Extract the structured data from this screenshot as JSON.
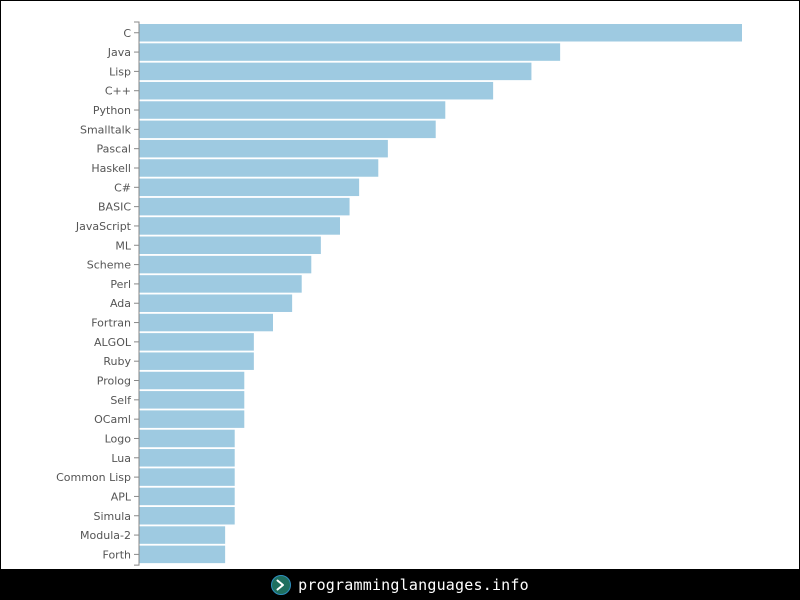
{
  "chart_data": {
    "type": "bar",
    "orientation": "horizontal",
    "categories": [
      "C",
      "Java",
      "Lisp",
      "C++",
      "Python",
      "Smalltalk",
      "Pascal",
      "Haskell",
      "C#",
      "BASIC",
      "JavaScript",
      "ML",
      "Scheme",
      "Perl",
      "Ada",
      "Fortran",
      "ALGOL",
      "Ruby",
      "Prolog",
      "Self",
      "OCaml",
      "Logo",
      "Lua",
      "Common Lisp",
      "APL",
      "Simula",
      "Modula-2",
      "Forth"
    ],
    "values": [
      63,
      44,
      41,
      37,
      32,
      31,
      26,
      25,
      23,
      22,
      21,
      19,
      18,
      17,
      16,
      14,
      12,
      12,
      11,
      11,
      11,
      10,
      10,
      10,
      10,
      10,
      9,
      9
    ],
    "xlim": [
      0,
      63
    ],
    "title": "",
    "xlabel": "",
    "ylabel": "",
    "grid": false,
    "bar_color": "#9ecae1"
  },
  "footer": {
    "site_name": "programminglanguages.info",
    "logo_icon": "terminal-prompt-icon"
  },
  "colors": {
    "background": "#ffffff",
    "frame": "#000000",
    "bar": "#9ecae1",
    "axis": "#888888",
    "label": "#555555"
  }
}
